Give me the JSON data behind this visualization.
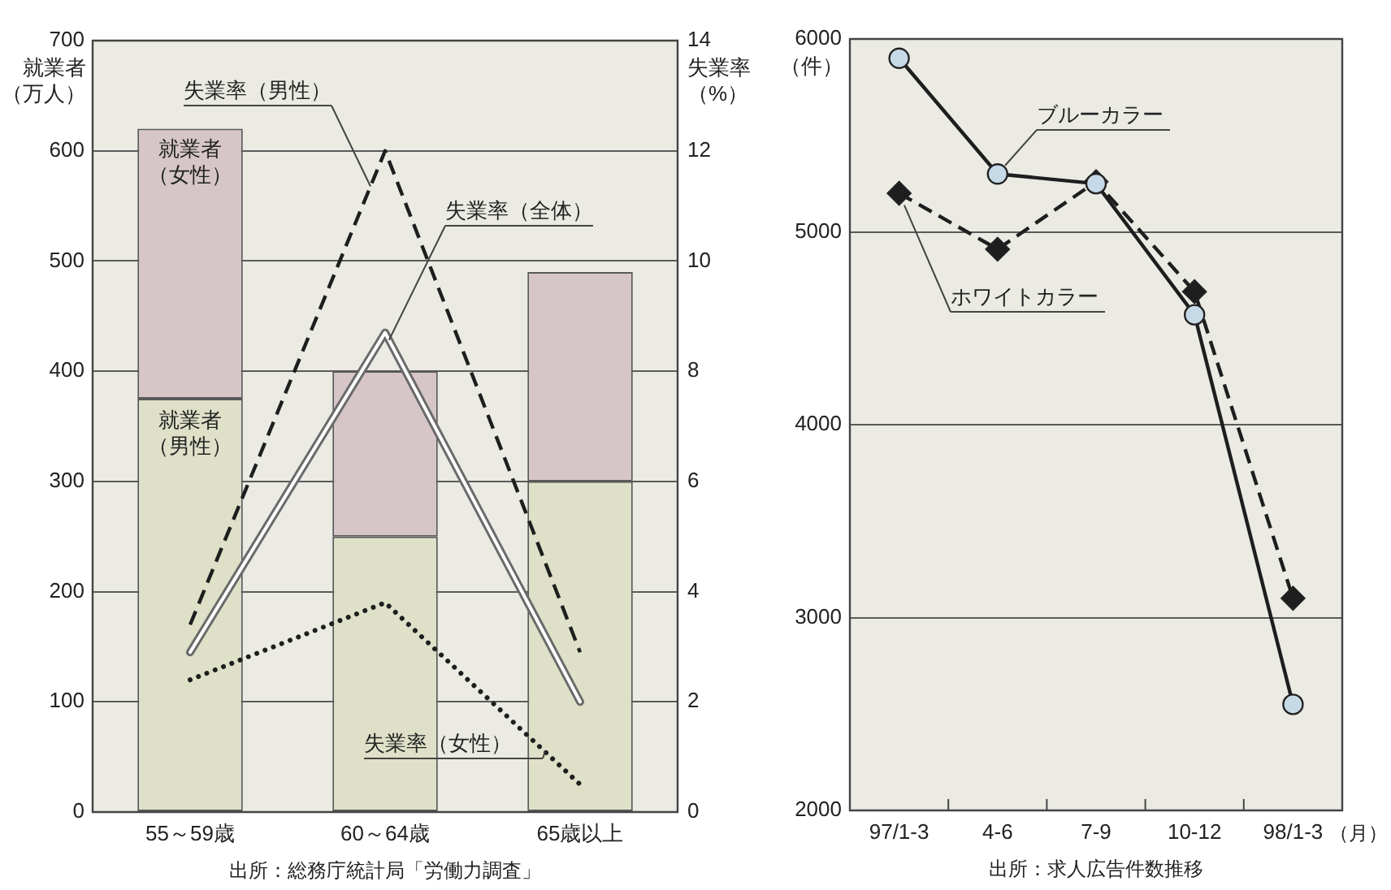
{
  "chart_data": [
    {
      "type": "bar",
      "stacked": true,
      "categories": [
        "55～59歳",
        "60～64歳",
        "65歳以上"
      ],
      "series": [
        {
          "name": "就業者（男性）",
          "type": "bar",
          "color": "#dfe0c8",
          "values": [
            375,
            250,
            300
          ]
        },
        {
          "name": "就業者（女性）",
          "type": "bar",
          "color": "#d6c6c8",
          "values": [
            245,
            150,
            190
          ]
        },
        {
          "name": "失業率（男性）",
          "type": "line",
          "axis": "y2",
          "color": "#1e1e1e",
          "line_style": "dashed",
          "marker": "none",
          "values": [
            3.4,
            12,
            2.9
          ]
        },
        {
          "name": "失業率（全体）",
          "type": "line",
          "axis": "y2",
          "color": "#6a6a6a",
          "line_style": "solid",
          "marker": "none",
          "values": [
            2.9,
            8.7,
            2.0
          ]
        },
        {
          "name": "失業率（女性）",
          "type": "line",
          "axis": "y2",
          "color": "#1e1e1e",
          "line_style": "dotted",
          "marker": "none",
          "values": [
            2.4,
            3.8,
            0.5
          ]
        }
      ],
      "ylabel": "就業者（万人）",
      "y2label": "失業率（%）",
      "ylim": [
        0,
        700
      ],
      "yticks": [
        0,
        100,
        200,
        300,
        400,
        500,
        600,
        700
      ],
      "y2lim": [
        0,
        14
      ],
      "y2ticks": [
        0,
        2,
        4,
        6,
        8,
        10,
        12,
        14
      ],
      "grid": "y",
      "annotations": [
        "出所：総務庁統計局「労働力調査」"
      ]
    },
    {
      "type": "line",
      "categories": [
        "97/1-3",
        "4-6",
        "7-9",
        "10-12",
        "98/1-3"
      ],
      "xlabel": "（月）",
      "ylabel": "（件）",
      "series": [
        {
          "name": "ブルーカラー",
          "color": "#1e1e1e",
          "colors": [
            "#c6d9e6",
            "#c6d9e6",
            "#c6d9e6",
            "#c6d9e6",
            "#c6d9e6"
          ],
          "marker": "circle",
          "line_style": "solid",
          "values": [
            5900,
            5300,
            5250,
            4570,
            2550
          ]
        },
        {
          "name": "ホワイトカラー",
          "color": "#1e1e1e",
          "marker": "diamond",
          "line_style": "dashed",
          "values": [
            5200,
            4910,
            5260,
            4690,
            3100
          ]
        }
      ],
      "ylim": [
        2000,
        6000
      ],
      "yticks": [
        2000,
        3000,
        4000,
        5000,
        6000
      ],
      "grid": "y",
      "annotations": [
        "出所：求人広告件数推移"
      ]
    }
  ]
}
